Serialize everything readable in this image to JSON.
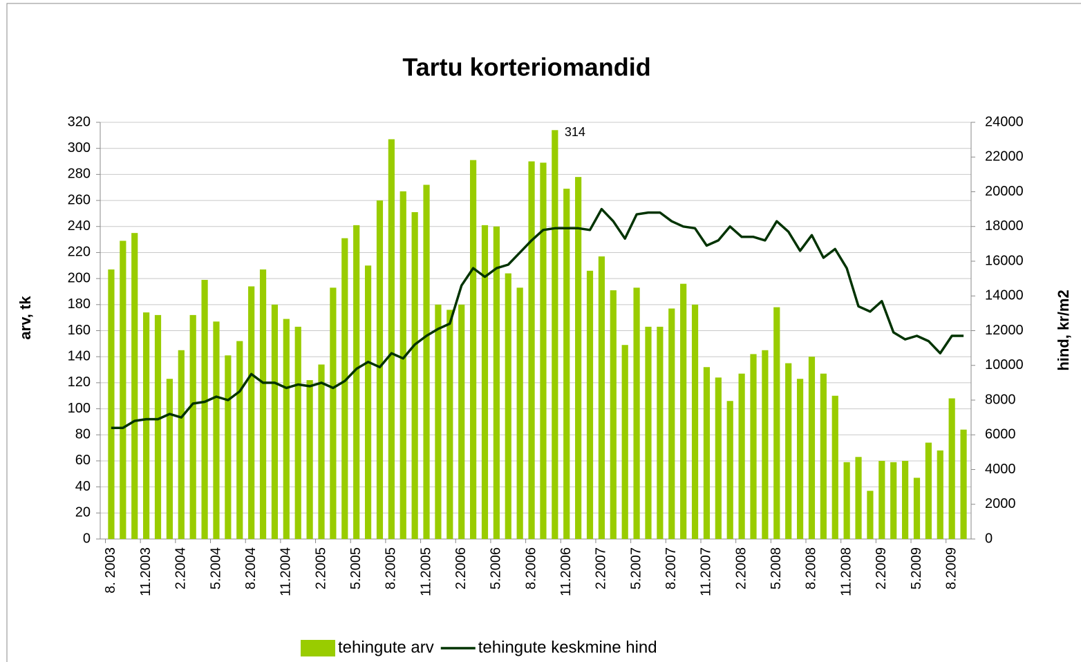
{
  "chart_data": {
    "type": "bar_line",
    "title": "Tartu korteriomandid",
    "ylabel": "arv, tk",
    "y2label": "hind, kr/m2",
    "categories": [
      "8. 2003",
      null,
      null,
      "11.2003",
      null,
      null,
      "2.2004",
      null,
      null,
      "5.2004",
      null,
      null,
      "8.2004",
      null,
      null,
      "11.2004",
      null,
      null,
      "2.2005",
      null,
      null,
      "5.2005",
      null,
      null,
      "8.2005",
      null,
      null,
      "11.2005",
      null,
      null,
      "2.2006",
      null,
      null,
      "5.2006",
      null,
      null,
      "8.2006",
      null,
      null,
      "11.2006",
      null,
      null,
      "2.2007",
      null,
      null,
      "5.2007",
      null,
      null,
      "8.2007",
      null,
      null,
      "11.2007",
      null,
      null,
      "2.2008",
      null,
      null,
      "5.2008",
      null,
      null,
      "8.2008",
      null,
      null,
      "11.2008",
      null,
      null,
      "2.2009",
      null,
      null,
      "5.2009",
      null,
      null,
      "8.2009",
      null
    ],
    "series": [
      {
        "name": "tehingute arv",
        "type": "bar",
        "color": "#99cc00",
        "values": [
          207,
          229,
          235,
          174,
          172,
          123,
          145,
          172,
          199,
          167,
          141,
          152,
          194,
          207,
          180,
          169,
          163,
          122,
          134,
          193,
          231,
          241,
          210,
          260,
          307,
          267,
          251,
          272,
          180,
          176,
          180,
          291,
          241,
          240,
          204,
          193,
          290,
          289,
          314,
          269,
          278,
          206,
          217,
          191,
          149,
          193,
          163,
          163,
          177,
          196,
          180,
          132,
          124,
          106,
          127,
          142,
          145,
          178,
          135,
          123,
          140,
          127,
          110,
          59,
          63,
          37,
          60,
          59,
          60,
          47,
          74,
          68,
          108,
          84
        ],
        "value_labels": [
          null,
          null,
          null,
          null,
          null,
          null,
          null,
          null,
          null,
          null,
          null,
          null,
          null,
          null,
          null,
          null,
          null,
          null,
          null,
          null,
          null,
          null,
          null,
          null,
          null,
          null,
          null,
          null,
          null,
          null,
          null,
          null,
          null,
          null,
          null,
          null,
          null,
          null,
          "314",
          null,
          null,
          null,
          null,
          null,
          null,
          null,
          null,
          null,
          null,
          null,
          null,
          null,
          null,
          null,
          null,
          null,
          null,
          null,
          null,
          null,
          null,
          null,
          null,
          null,
          null,
          null,
          null,
          null,
          null,
          null,
          null,
          null,
          null,
          null
        ]
      },
      {
        "name": "tehingute keskmine hind",
        "type": "line",
        "axis": "y2",
        "color": "#003300",
        "values": [
          6400,
          6400,
          6800,
          6900,
          6900,
          7200,
          7000,
          7800,
          7900,
          8200,
          8000,
          8500,
          9500,
          9000,
          9000,
          8700,
          8900,
          8800,
          9000,
          8700,
          9100,
          9800,
          10200,
          9900,
          10700,
          10400,
          11200,
          11700,
          12100,
          12400,
          14600,
          15600,
          15100,
          15600,
          15800,
          16500,
          17200,
          17800,
          17900,
          17900,
          17900,
          17800,
          19000,
          18300,
          17300,
          18700,
          18800,
          18800,
          18300,
          18000,
          17900,
          16900,
          17200,
          18000,
          17400,
          17400,
          17200,
          18300,
          17700,
          16600,
          17500,
          16200,
          16700,
          15600,
          13400,
          13100,
          13700,
          11900,
          11500,
          11700,
          11400,
          10700,
          11700,
          11700
        ]
      }
    ],
    "ylim": [
      0,
      320
    ],
    "yticks": [
      0,
      20,
      40,
      60,
      80,
      100,
      120,
      140,
      160,
      180,
      200,
      220,
      240,
      260,
      280,
      300,
      320
    ],
    "y2lim": [
      0,
      24000
    ],
    "y2ticks": [
      0,
      2000,
      4000,
      6000,
      8000,
      10000,
      12000,
      14000,
      16000,
      18000,
      20000,
      22000,
      24000
    ],
    "grid": true,
    "legend": "bottom"
  }
}
